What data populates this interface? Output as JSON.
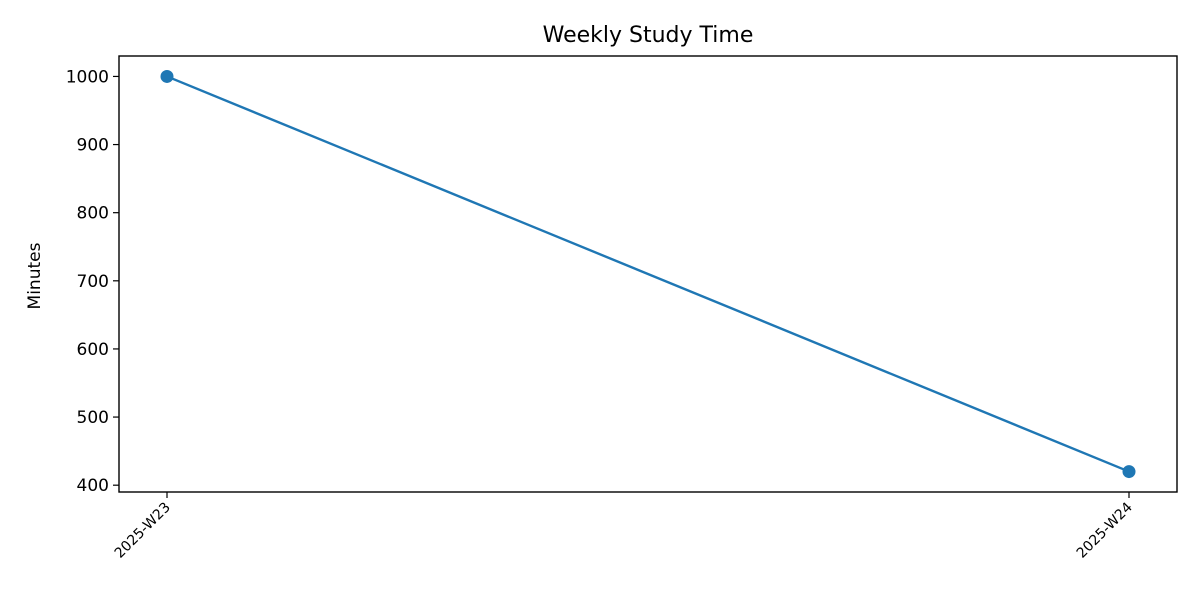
{
  "chart_data": {
    "type": "line",
    "title": "Weekly Study Time",
    "xlabel": "",
    "ylabel": "Minutes",
    "categories": [
      "2025-W23",
      "2025-W24"
    ],
    "series": [
      {
        "values": [
          1000,
          420
        ],
        "color": "#1f77b4"
      }
    ],
    "yticks": [
      400,
      500,
      600,
      700,
      800,
      900,
      1000
    ],
    "ylim": [
      390,
      1030
    ],
    "grid": false,
    "legend": "none"
  }
}
